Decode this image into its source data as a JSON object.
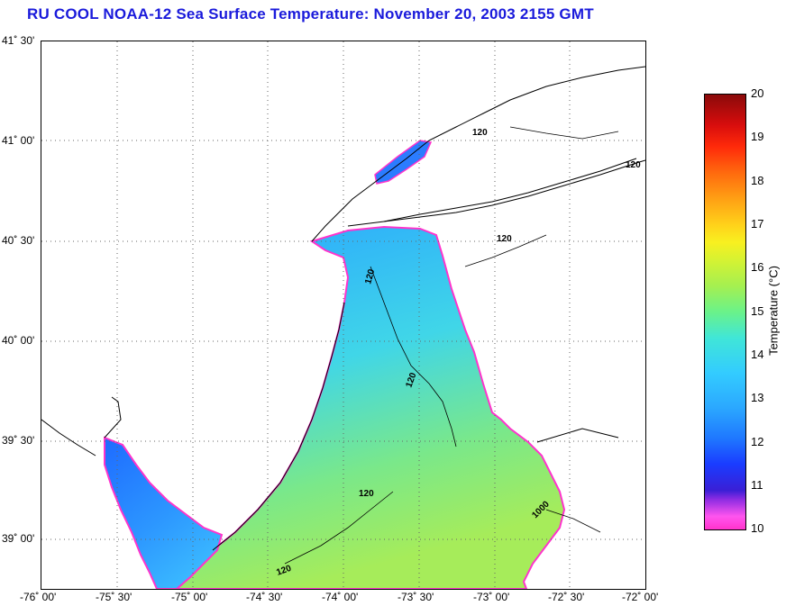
{
  "title": "RU COOL  NOAA-12  Sea Surface Temperature:  November 20, 2003 2155 GMT",
  "map": {
    "lat_labels": [
      "41˚ 30'",
      "41˚ 00'",
      "40˚ 30'",
      "40˚ 00'",
      "39˚ 30'",
      "39˚ 00'"
    ],
    "lon_labels": [
      "-76˚ 00'",
      "-75˚ 30'",
      "-75˚ 00'",
      "-74˚ 30'",
      "-74˚ 00'",
      "-73˚ 30'",
      "-73˚ 00'",
      "-72˚ 30'",
      "-72˚ 00'"
    ],
    "contour_labels": [
      "120",
      "120",
      "120",
      "120",
      "120",
      "120",
      "120",
      "1000"
    ]
  },
  "colorbar": {
    "ticks": [
      "20",
      "19",
      "18",
      "17",
      "16",
      "15",
      "14",
      "13",
      "12",
      "11",
      "10"
    ],
    "label": "Temperature (°C)",
    "range": [
      10,
      20
    ]
  },
  "colors": {
    "title": "#1a1adb",
    "land": "#ffffff",
    "coast": "#000000"
  }
}
